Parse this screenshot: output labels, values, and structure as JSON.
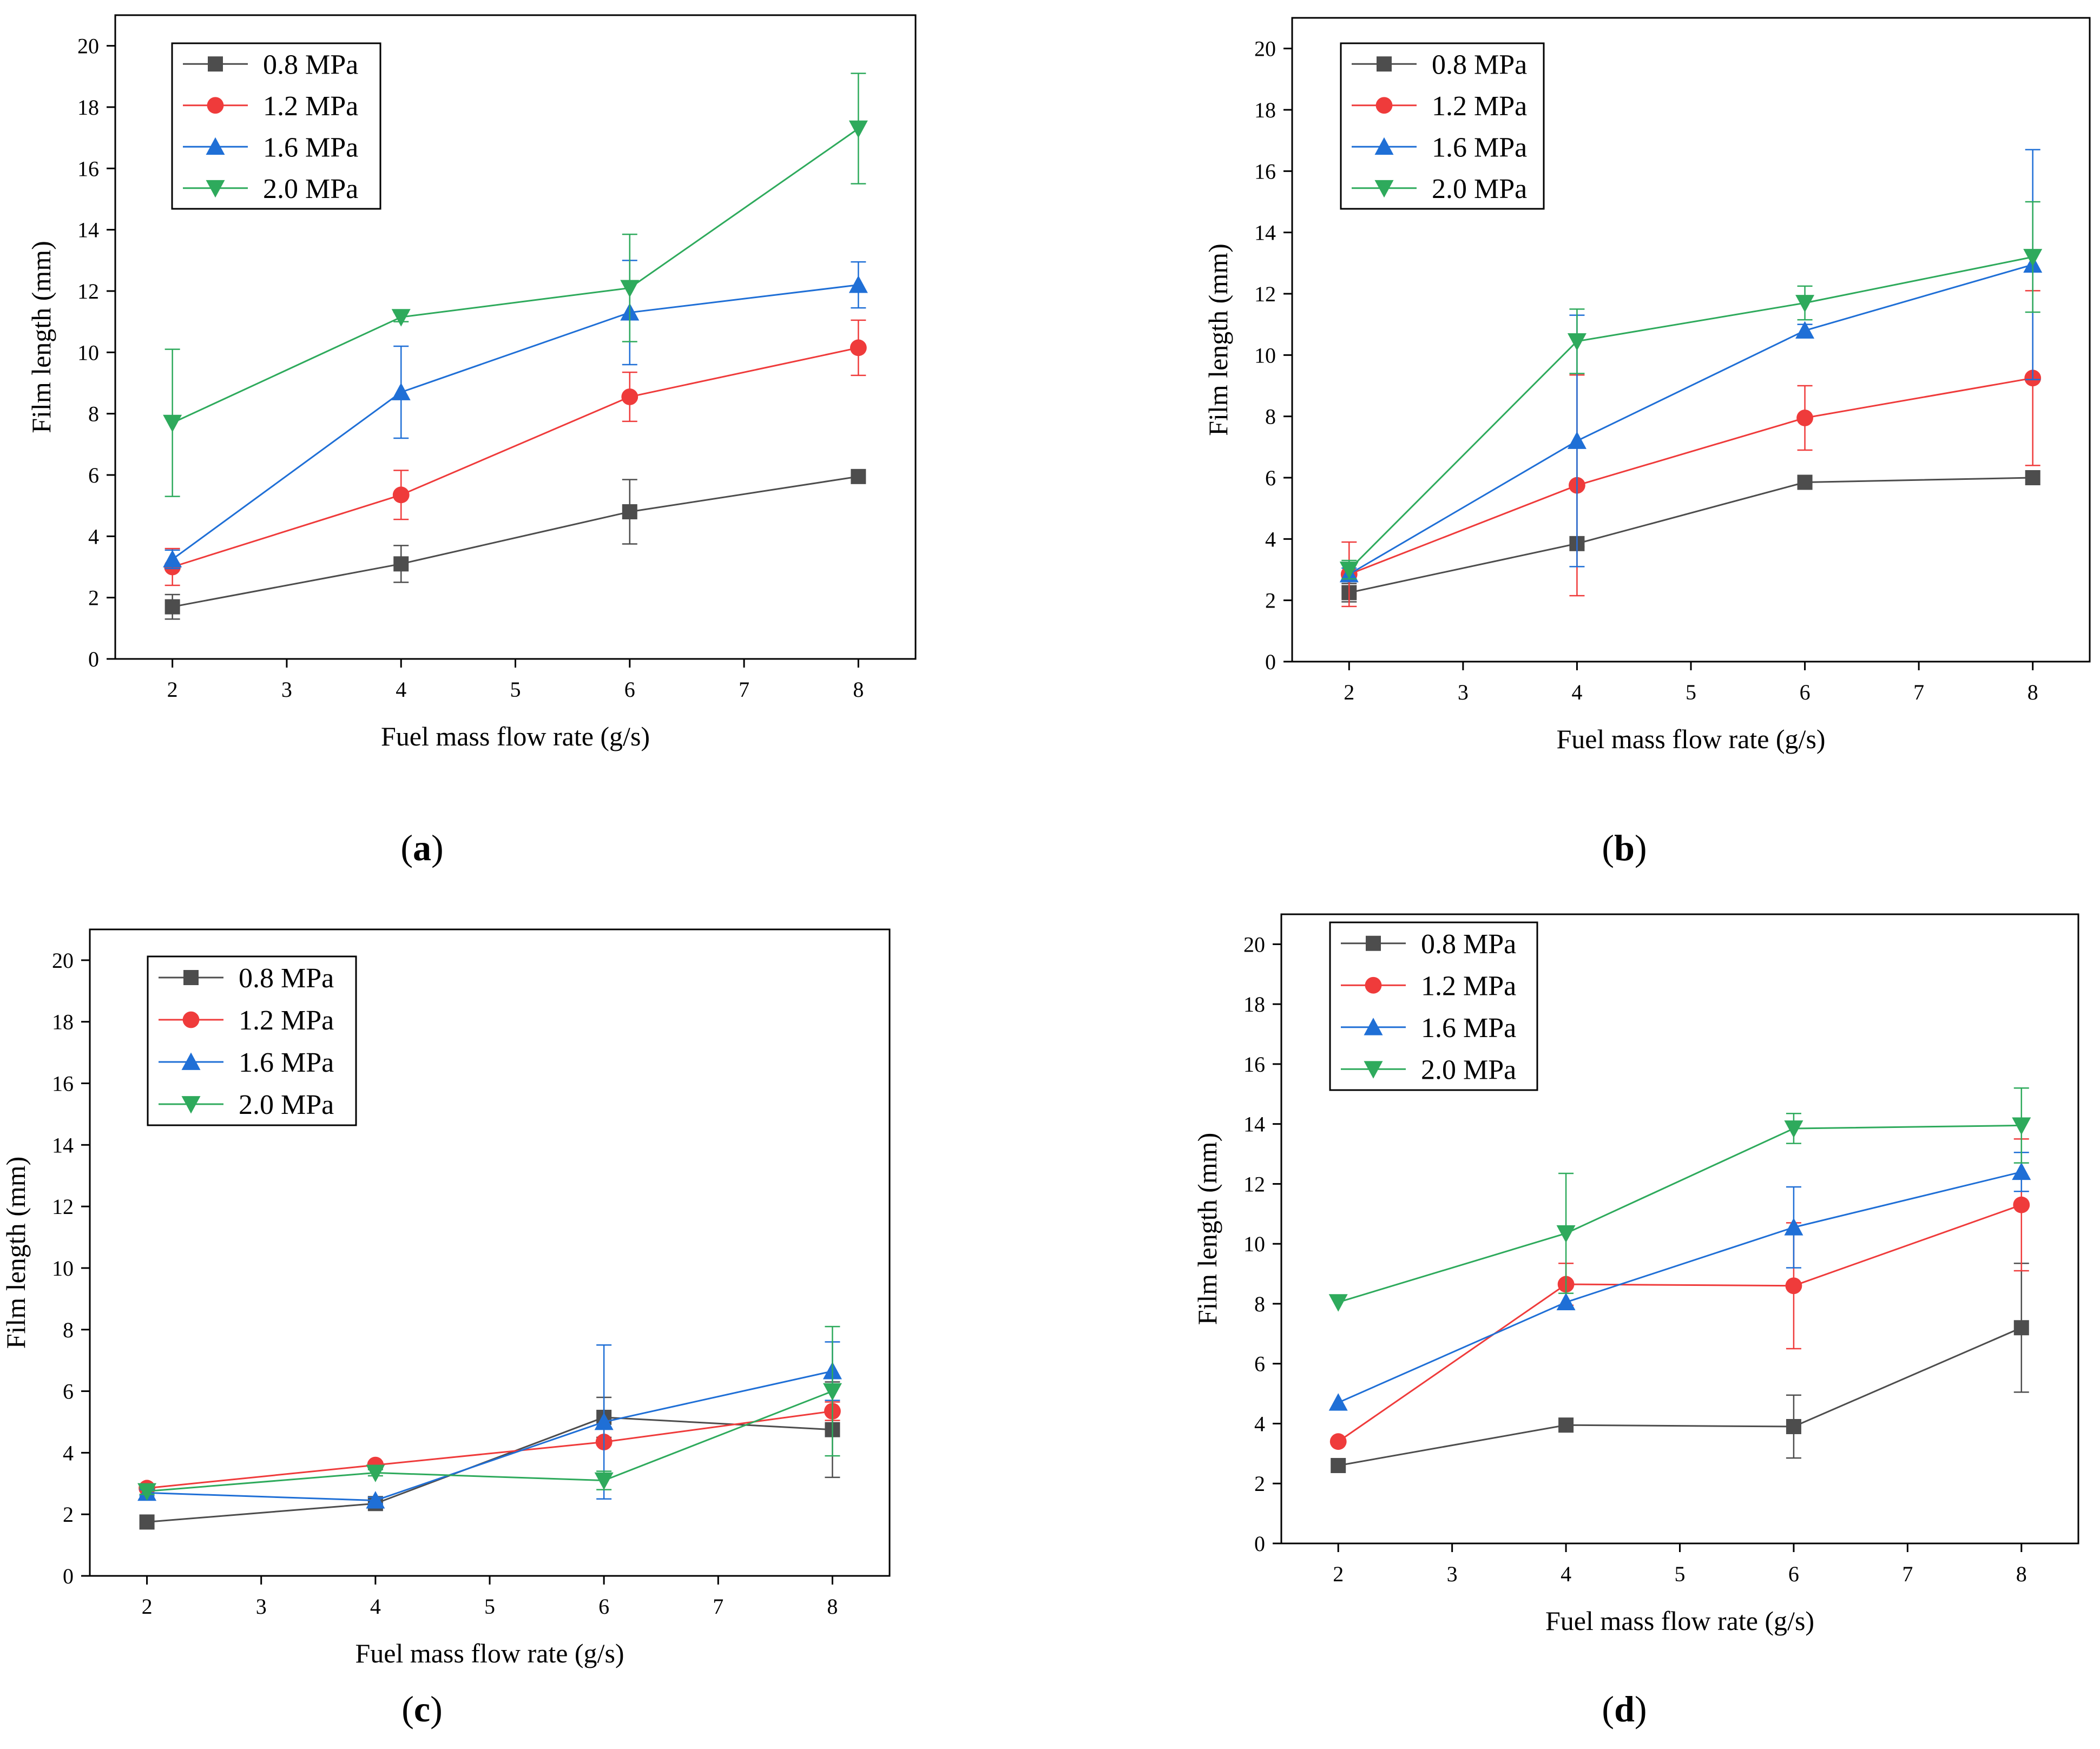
{
  "legend": {
    "entries": [
      "0.8 MPa",
      "1.2 MPa",
      "1.6 MPa",
      "2.0 MPa"
    ]
  },
  "chart_data": [
    {
      "type": "line",
      "panel": "a",
      "xlabel": "Fuel mass flow rate (g/s)",
      "ylabel": "Film length (mm)",
      "xlim": [
        1.5,
        8.5
      ],
      "ylim": [
        0,
        21
      ],
      "xticks": [
        2,
        3,
        4,
        5,
        6,
        7,
        8
      ],
      "yticks": [
        0,
        2,
        4,
        6,
        8,
        10,
        12,
        14,
        16,
        18,
        20
      ],
      "x": [
        2,
        4,
        6,
        8
      ],
      "series": [
        {
          "name": "0.8 MPa",
          "color": "#4d4d4d",
          "marker": "square",
          "values": [
            1.7,
            3.1,
            4.8,
            5.95
          ],
          "errors": [
            0.4,
            0.6,
            1.05,
            0
          ]
        },
        {
          "name": "1.2 MPa",
          "color": "#ef3b3b",
          "marker": "circle",
          "values": [
            3.0,
            5.35,
            8.55,
            10.15
          ],
          "errors": [
            0.6,
            0.8,
            0.8,
            0.9
          ]
        },
        {
          "name": "1.6 MPa",
          "color": "#1f6fd6",
          "marker": "triangle-up",
          "values": [
            3.25,
            8.7,
            11.3,
            12.2
          ],
          "errors": [
            0.3,
            1.5,
            1.7,
            0.75
          ]
        },
        {
          "name": "2.0 MPa",
          "color": "#2eaa5c",
          "marker": "triangle-down",
          "values": [
            7.7,
            11.15,
            12.1,
            17.3
          ],
          "errors": [
            2.4,
            0.15,
            1.75,
            1.8
          ]
        }
      ]
    },
    {
      "type": "line",
      "panel": "b",
      "xlabel": "Fuel mass flow rate (g/s)",
      "ylabel": "Film length (mm)",
      "xlim": [
        1.5,
        8.5
      ],
      "ylim": [
        0,
        21
      ],
      "xticks": [
        2,
        3,
        4,
        5,
        6,
        7,
        8
      ],
      "yticks": [
        0,
        2,
        4,
        6,
        8,
        10,
        12,
        14,
        16,
        18,
        20
      ],
      "x": [
        2,
        4,
        6,
        8
      ],
      "series": [
        {
          "name": "0.8 MPa",
          "color": "#4d4d4d",
          "marker": "square",
          "values": [
            2.25,
            3.85,
            5.85,
            6.0
          ],
          "errors": [
            0.3,
            0.1,
            0,
            0
          ]
        },
        {
          "name": "1.2 MPa",
          "color": "#ef3b3b",
          "marker": "circle",
          "values": [
            2.85,
            5.75,
            7.95,
            9.25
          ],
          "errors": [
            1.05,
            3.6,
            1.05,
            2.85
          ]
        },
        {
          "name": "1.6 MPa",
          "color": "#1f6fd6",
          "marker": "triangle-up",
          "values": [
            2.85,
            7.2,
            10.8,
            12.95
          ],
          "errors": [
            0.2,
            4.1,
            0.2,
            3.75
          ]
        },
        {
          "name": "2.0 MPa",
          "color": "#2eaa5c",
          "marker": "triangle-down",
          "values": [
            3.0,
            10.45,
            11.7,
            13.2
          ],
          "errors": [
            0.3,
            1.05,
            0.55,
            1.8
          ]
        }
      ]
    },
    {
      "type": "line",
      "panel": "c",
      "xlabel": "Fuel mass flow rate (g/s)",
      "ylabel": "Film length (mm)",
      "xlim": [
        1.5,
        8.5
      ],
      "ylim": [
        0,
        21
      ],
      "xticks": [
        2,
        3,
        4,
        5,
        6,
        7,
        8
      ],
      "yticks": [
        0,
        2,
        4,
        6,
        8,
        10,
        12,
        14,
        16,
        18,
        20
      ],
      "x": [
        2,
        4,
        6,
        8
      ],
      "series": [
        {
          "name": "0.8 MPa",
          "color": "#4d4d4d",
          "marker": "square",
          "values": [
            1.75,
            2.35,
            5.15,
            4.75
          ],
          "errors": [
            0,
            0.1,
            0.65,
            1.55
          ]
        },
        {
          "name": "1.2 MPa",
          "color": "#ef3b3b",
          "marker": "circle",
          "values": [
            2.85,
            3.6,
            4.35,
            5.35
          ],
          "errors": [
            0.1,
            0.1,
            0.1,
            0.3
          ]
        },
        {
          "name": "1.6 MPa",
          "color": "#1f6fd6",
          "marker": "triangle-up",
          "values": [
            2.7,
            2.45,
            5.0,
            6.65
          ],
          "errors": [
            0.1,
            0.1,
            2.5,
            0.95
          ]
        },
        {
          "name": "2.0 MPa",
          "color": "#2eaa5c",
          "marker": "triangle-down",
          "values": [
            2.75,
            3.35,
            3.1,
            6.0
          ],
          "errors": [
            0.1,
            0.1,
            0.3,
            2.1
          ]
        }
      ]
    },
    {
      "type": "line",
      "panel": "d",
      "xlabel": "Fuel mass flow rate (g/s)",
      "ylabel": "Film length (mm)",
      "xlim": [
        1.5,
        8.5
      ],
      "ylim": [
        0,
        21
      ],
      "xticks": [
        2,
        3,
        4,
        5,
        6,
        7,
        8
      ],
      "yticks": [
        0,
        2,
        4,
        6,
        8,
        10,
        12,
        14,
        16,
        18,
        20
      ],
      "x": [
        2,
        4,
        6,
        8
      ],
      "series": [
        {
          "name": "0.8 MPa",
          "color": "#4d4d4d",
          "marker": "square",
          "values": [
            2.6,
            3.95,
            3.9,
            7.2
          ],
          "errors": [
            0,
            0,
            1.05,
            2.15
          ]
        },
        {
          "name": "1.2 MPa",
          "color": "#ef3b3b",
          "marker": "circle",
          "values": [
            3.4,
            8.65,
            8.6,
            11.3
          ],
          "errors": [
            0,
            0.7,
            2.1,
            2.2
          ]
        },
        {
          "name": "1.6 MPa",
          "color": "#1f6fd6",
          "marker": "triangle-up",
          "values": [
            4.7,
            8.05,
            10.55,
            12.4
          ],
          "errors": [
            0,
            0,
            1.35,
            0.65
          ]
        },
        {
          "name": "2.0 MPa",
          "color": "#2eaa5c",
          "marker": "triangle-down",
          "values": [
            8.05,
            10.35,
            13.85,
            13.95
          ],
          "errors": [
            0,
            2.0,
            0.5,
            1.25
          ]
        }
      ]
    }
  ]
}
